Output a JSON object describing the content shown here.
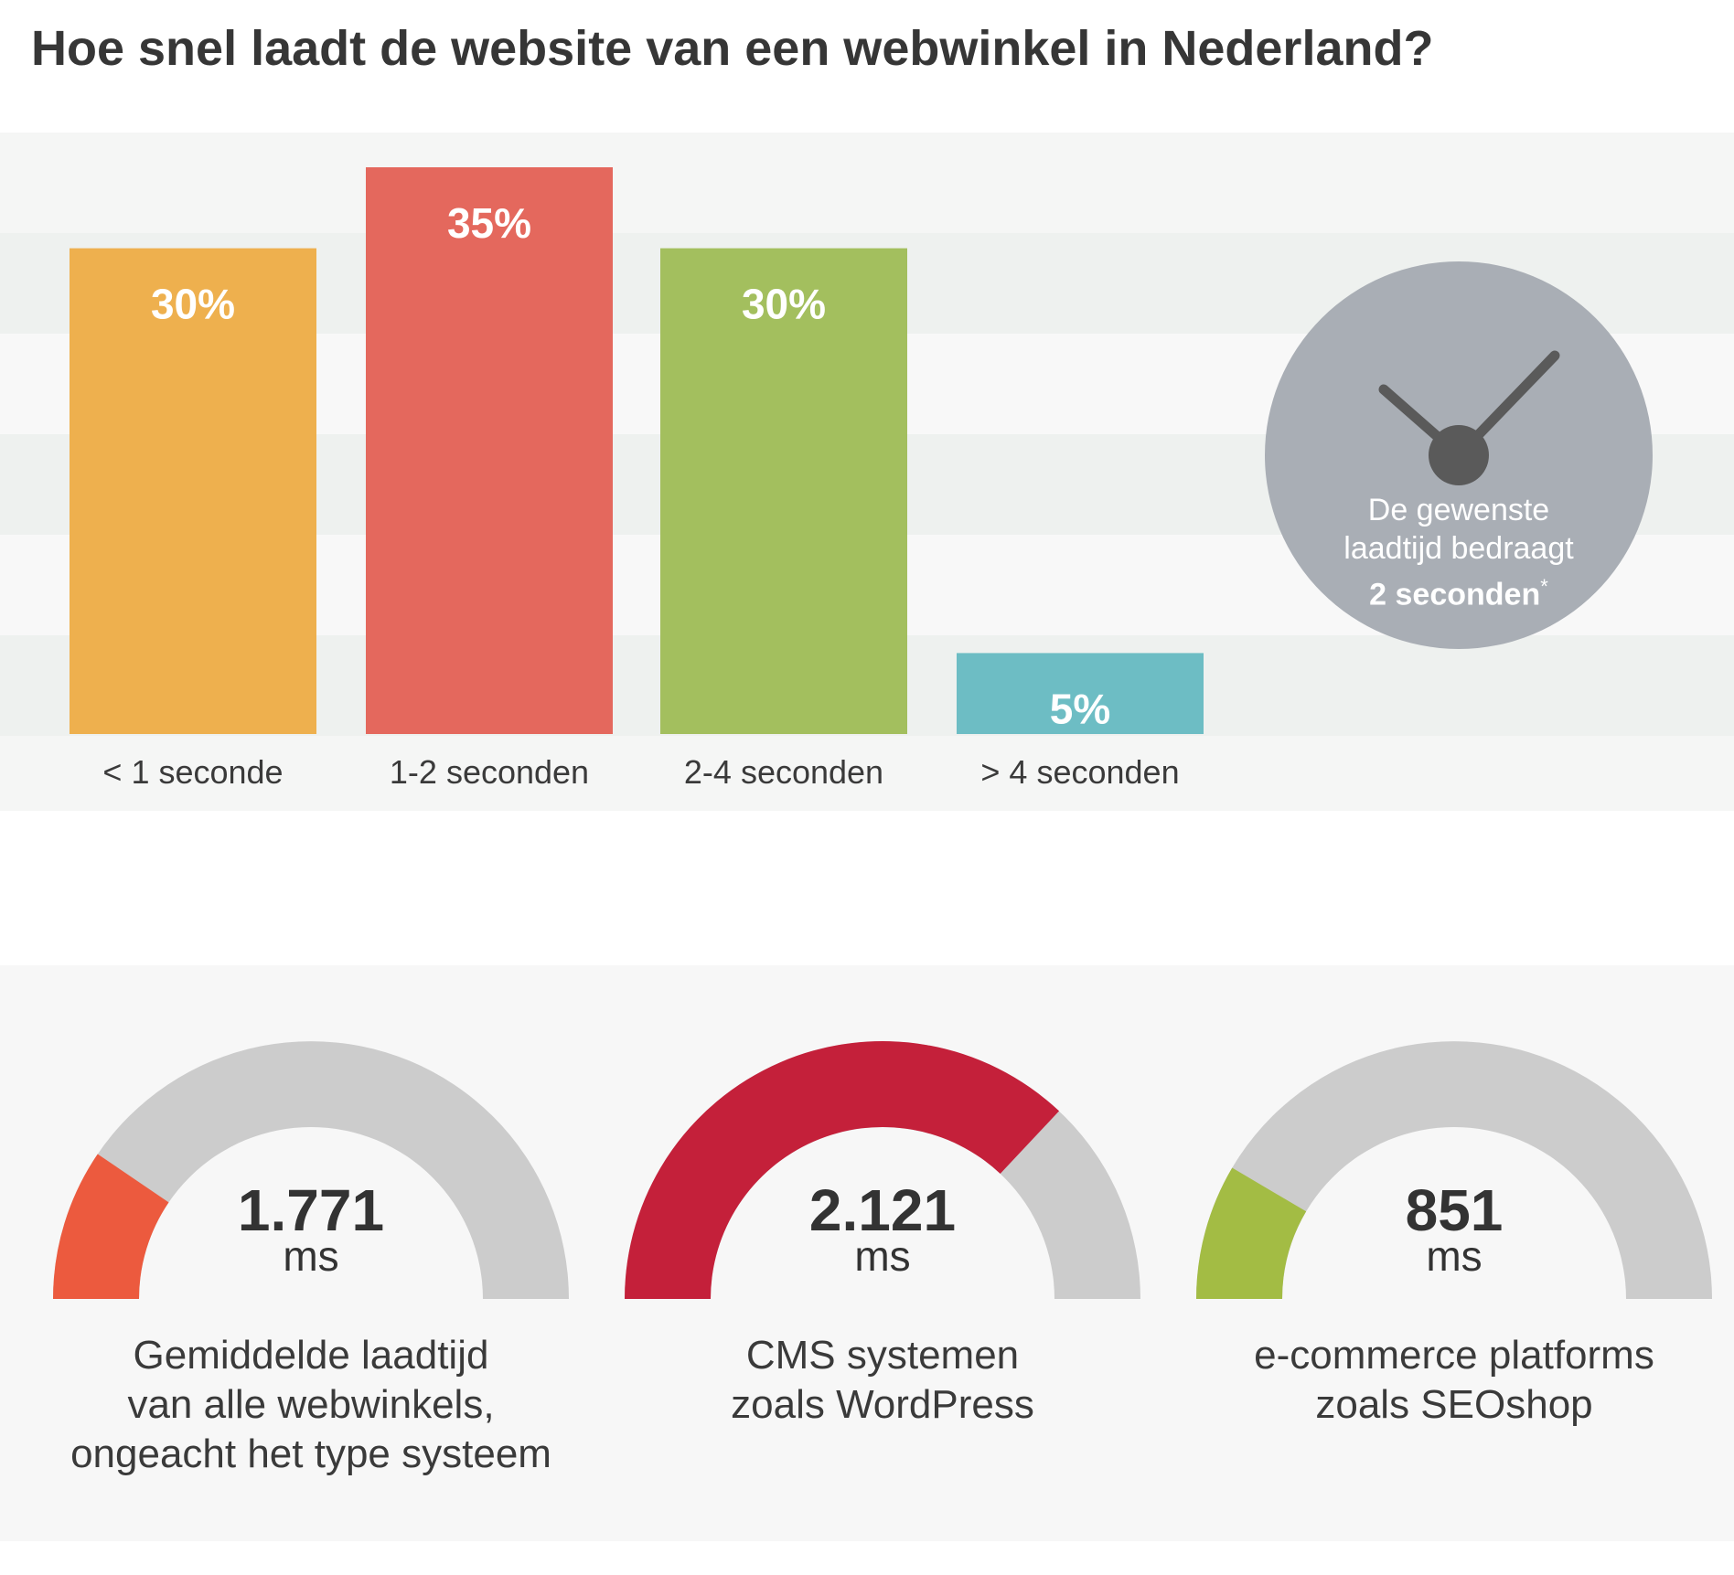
{
  "title": "Hoe snel laadt de website van een webwinkel in Nederland?",
  "chart_data": [
    {
      "type": "bar",
      "title": "Hoe snel laadt de website van een webwinkel in Nederland?",
      "categories": [
        "< 1 seconde",
        "1-2 seconden",
        "2-4 seconden",
        "> 4 seconden"
      ],
      "values": [
        30,
        35,
        30,
        5
      ],
      "value_labels": [
        "30%",
        "35%",
        "30%",
        "5%"
      ],
      "colors": [
        "#eeb04e",
        "#e4685d",
        "#a3bf5e",
        "#6dbdc4"
      ],
      "ylim": [
        0,
        35
      ],
      "grid": "alternating horizontal bands",
      "legend": "none"
    },
    {
      "type": "gauge",
      "gauges": [
        {
          "value": "1.771",
          "unit": "ms",
          "fraction": 0.19,
          "color": "#ec5a3e",
          "caption": [
            "Gemiddelde laadtijd",
            "van alle webwinkels,",
            "ongeacht het type systeem"
          ]
        },
        {
          "value": "2.121",
          "unit": "ms",
          "fraction": 0.74,
          "color": "#c4203a",
          "caption": [
            "CMS systemen",
            "zoals WordPress"
          ]
        },
        {
          "value": "851",
          "unit": "ms",
          "fraction": 0.17,
          "color": "#a3bc44",
          "caption": [
            "e-commerce platforms",
            "zoals SEOshop"
          ]
        }
      ],
      "track_color": "#cccccc"
    }
  ],
  "clock": {
    "line1": "De gewenste",
    "line2": "laadtijd bedraagt",
    "line3": "2 seconden",
    "mark": "*",
    "face_color": "#a9aeb5",
    "hand_color": "#5a5a5a",
    "icon": "clock-icon"
  }
}
